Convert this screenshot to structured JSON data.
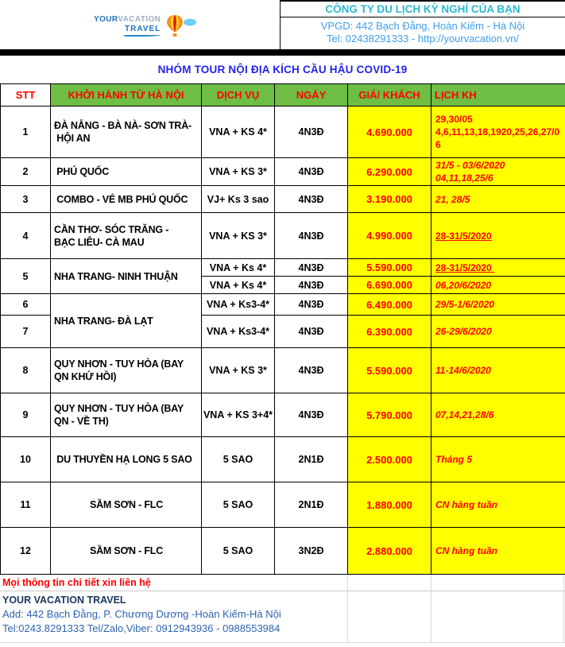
{
  "header": {
    "logo": {
      "word1": "YOUR",
      "word2": "VACATION",
      "word3": "TRAVEL"
    },
    "company_name": "CÔNG TY DU LỊCH KỲ NGHỈ CỦA BẠN",
    "office_line": "VPGD: 442 Bạch Đằng, Hoàn Kiếm - Hà Nội",
    "tel_line": "Tel: 02438291333 - http://yourvacation.vn/"
  },
  "title": "NHÓM TOUR NỘI ĐỊA KÍCH CẦU HẬU COVID-19",
  "table": {
    "columns": [
      "STT",
      "KHỞI HÀNH TỪ HÀ NỘI",
      "DỊCH VỤ",
      "NGÀY",
      "GIÁ/ KHÁCH",
      "LỊCH KH"
    ],
    "rows": [
      {
        "cells": [
          {
            "col": "stt",
            "t": "1"
          },
          {
            "col": "tour",
            "t": "ĐÀ NẴNG - BÀ NÀ- SƠN TRÀ-\n HỘI AN"
          },
          {
            "col": "svc",
            "t": "VNA + KS 4*"
          },
          {
            "col": "ngay",
            "t": "4N3Đ"
          },
          {
            "col": "gia",
            "t": "4.690.000"
          },
          {
            "col": "lich",
            "t": "29,30/05\n4,6,11,13,18,1920,25,26,27/06"
          }
        ]
      },
      {
        "cells": [
          {
            "col": "stt",
            "t": "2"
          },
          {
            "col": "tour",
            "t": " PHÚ QUỐC"
          },
          {
            "col": "svc",
            "t": "VNA + KS 3*"
          },
          {
            "col": "ngay",
            "t": "4N3Đ"
          },
          {
            "col": "gia",
            "t": "6.290.000"
          },
          {
            "col": "lich",
            "t": "31/5 - 03/6/2020\n04,11,18,25/6",
            "fs": "i"
          }
        ]
      },
      {
        "cells": [
          {
            "col": "stt",
            "t": "3"
          },
          {
            "col": "tour",
            "t": " COMBO - VÉ MB PHÚ QUỐC"
          },
          {
            "col": "svc",
            "t": "VJ+ Ks 3 sao"
          },
          {
            "col": "ngay",
            "t": "4N3Đ"
          },
          {
            "col": "gia",
            "t": "3.190.000"
          },
          {
            "col": "lich",
            "t": "21, 28/5",
            "fs": "i"
          }
        ]
      },
      {
        "cells": [
          {
            "col": "stt",
            "t": "4"
          },
          {
            "col": "tour",
            "t": "CẦN THƠ- SÓC TRĂNG -\nBẠC LIÊU- CÀ MAU"
          },
          {
            "col": "svc",
            "t": "VNA + KS 3*"
          },
          {
            "col": "ngay",
            "t": "4N3Đ"
          },
          {
            "col": "gia",
            "t": "4.990.000"
          },
          {
            "col": "lich",
            "t": "28-31/5/2020",
            "fs": "u"
          }
        ]
      },
      {
        "cells": [
          {
            "col": "stt",
            "t": "5",
            "rs": 2
          },
          {
            "col": "tour",
            "t": "NHA TRANG- NINH THUẬN",
            "rs": 2
          },
          {
            "col": "svc",
            "t": "VNA + Ks 4*"
          },
          {
            "col": "ngay",
            "t": "4N3Đ"
          },
          {
            "col": "gia",
            "t": "5.590.000"
          },
          {
            "col": "lich",
            "t": "28-31/5/2020 ",
            "fs": "u"
          }
        ]
      },
      {
        "cells": [
          {
            "col": "svc",
            "t": "VNA + Ks 4*"
          },
          {
            "col": "ngay",
            "t": "4N3Đ"
          },
          {
            "col": "gia",
            "t": "6.690.000"
          },
          {
            "col": "lich",
            "t": "06,20/6/2020",
            "fs": "i"
          }
        ]
      },
      {
        "cells": [
          {
            "col": "stt",
            "t": "6"
          },
          {
            "col": "tour",
            "t": "NHA TRANG- ĐÀ LẠT",
            "rs": 2
          },
          {
            "col": "svc",
            "t": "VNA + Ks3-4*"
          },
          {
            "col": "ngay",
            "t": "4N3Đ"
          },
          {
            "col": "gia",
            "t": "6.490.000"
          },
          {
            "col": "lich",
            "t": "29/5-1/6/2020",
            "fs": "i"
          }
        ]
      },
      {
        "cells": [
          {
            "col": "stt",
            "t": "7"
          },
          {
            "col": "svc",
            "t": "VNA + Ks3-4*"
          },
          {
            "col": "ngay",
            "t": "4N3Đ"
          },
          {
            "col": "gia",
            "t": "6.390.000"
          },
          {
            "col": "lich",
            "t": "26-29/6/2020",
            "fs": "i"
          }
        ]
      },
      {
        "cells": [
          {
            "col": "stt",
            "t": "8"
          },
          {
            "col": "tour",
            "t": "QUY NHƠN - TUY HÒA (BAY\nQN KHỨ HỒI)"
          },
          {
            "col": "svc",
            "t": "VNA + KS 3*"
          },
          {
            "col": "ngay",
            "t": "4N3Đ"
          },
          {
            "col": "gia",
            "t": "5.590.000"
          },
          {
            "col": "lich",
            "t": "11-14/6/2020",
            "fs": "i"
          }
        ]
      },
      {
        "cells": [
          {
            "col": "stt",
            "t": "9"
          },
          {
            "col": "tour",
            "t": "QUY NHƠN - TUY HÒA (BAY\nQN - VỀ TH)"
          },
          {
            "col": "svc",
            "t": "VNA + KS 3+4*"
          },
          {
            "col": "ngay",
            "t": "4N3Đ"
          },
          {
            "col": "gia",
            "t": "5.790.000"
          },
          {
            "col": "lich",
            "t": "07,14,21,28/6",
            "fs": "i"
          }
        ]
      },
      {
        "cells": [
          {
            "col": "stt",
            "t": "10"
          },
          {
            "col": "tour",
            "t": " DU THUYỀN HẠ LONG 5 SAO"
          },
          {
            "col": "svc",
            "t": "5 SAO"
          },
          {
            "col": "ngay",
            "t": "2N1Đ"
          },
          {
            "col": "gia",
            "t": "2.500.000"
          },
          {
            "col": "lich",
            "t": "Tháng 5",
            "fs": "i"
          }
        ]
      },
      {
        "cells": [
          {
            "col": "stt",
            "t": "11"
          },
          {
            "col": "tour",
            "t": "SẦM SƠN - FLC",
            "al": "c"
          },
          {
            "col": "svc",
            "t": "5 SAO"
          },
          {
            "col": "ngay",
            "t": "2N1Đ"
          },
          {
            "col": "gia",
            "t": "1.880.000"
          },
          {
            "col": "lich",
            "t": "CN hàng tuần",
            "fs": "i"
          }
        ]
      },
      {
        "cells": [
          {
            "col": "stt",
            "t": "12"
          },
          {
            "col": "tour",
            "t": "SẦM SƠN - FLC",
            "al": "c"
          },
          {
            "col": "svc",
            "t": "5 SAO"
          },
          {
            "col": "ngay",
            "t": "3N2Đ"
          },
          {
            "col": "gia",
            "t": "2.880.000"
          },
          {
            "col": "lich",
            "t": "CN hàng tuần",
            "fs": "i"
          }
        ]
      }
    ]
  },
  "footer": {
    "contact_note": "Mọi thông tin chi tiết xin liên hệ",
    "company": "YOUR VACATION TRAVEL",
    "address": "Add: 442 Bạch Đằng, P. Chương Dương -Hoàn Kiếm-Hà Nội",
    "phones": "Tel:0243.8291333 Tel/Zalo,Viber: 0912943936 - 0988553984"
  },
  "colors": {
    "header_green": "#6ebe44",
    "highlight_yellow": "#ffff00",
    "accent_red": "#ff0000",
    "title_blue": "#2323eb",
    "company_teal": "#2cb8ce",
    "company_blue": "#3e9eea",
    "footer_navy": "#17375d",
    "footer_blue": "#2e64ae"
  }
}
